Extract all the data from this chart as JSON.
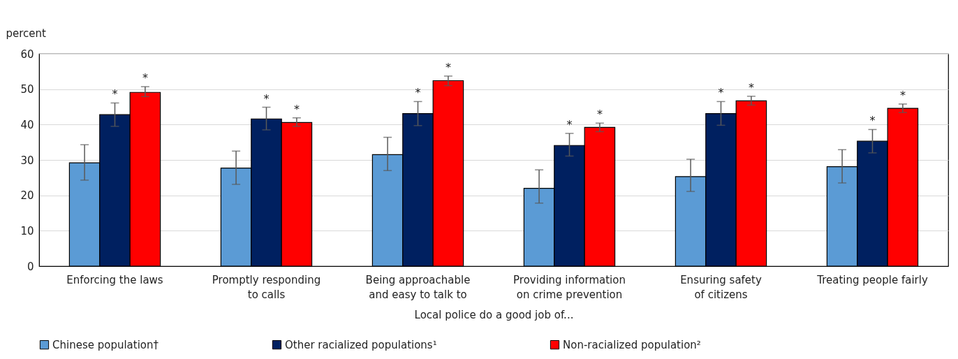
{
  "chart_data": {
    "type": "bar",
    "xlabel": "Local police do a good job of...",
    "ylabel": "percent",
    "categories": [
      "Enforcing the laws",
      "Promptly responding to calls",
      "Being approachable and easy to talk to",
      "Providing information on crime prevention",
      "Ensuring safety of citizens",
      "Treating people fairly"
    ],
    "series": [
      {
        "name": "Chinese population†",
        "color": "#5b9bd5",
        "values": [
          29.2,
          27.7,
          31.5,
          22.0,
          25.3,
          28.1
        ],
        "errors": [
          [
            24.3,
            34.3
          ],
          [
            23.1,
            32.5
          ],
          [
            27.0,
            36.4
          ],
          [
            17.8,
            27.2
          ],
          [
            21.1,
            30.2
          ],
          [
            23.5,
            32.9
          ]
        ]
      },
      {
        "name": "Other racialized populations¹",
        "color": "#002060",
        "values": [
          42.8,
          41.6,
          43.1,
          34.1,
          43.1,
          35.3
        ],
        "errors": [
          [
            39.5,
            46.1
          ],
          [
            38.5,
            44.9
          ],
          [
            39.7,
            46.5
          ],
          [
            31.1,
            37.5
          ],
          [
            39.8,
            46.5
          ],
          [
            32.0,
            38.6
          ]
        ],
        "value_labels": [
          "*",
          "*",
          "*",
          "*",
          "*",
          "*"
        ]
      },
      {
        "name": "Non-racialized population²",
        "color": "#ff0000",
        "values": [
          49.1,
          40.6,
          52.4,
          39.2,
          46.7,
          44.6
        ],
        "errors": [
          [
            47.9,
            50.7
          ],
          [
            39.5,
            41.9
          ],
          [
            51.0,
            53.7
          ],
          [
            38.0,
            40.4
          ],
          [
            45.5,
            48.0
          ],
          [
            43.4,
            45.8
          ]
        ],
        "value_labels": [
          "*",
          "*",
          "*",
          "*",
          "*",
          "*"
        ]
      }
    ],
    "ylim": [
      0,
      60
    ],
    "yticks": [
      0,
      10,
      20,
      30,
      40,
      50,
      60
    ],
    "grid": "y",
    "legend": "bottom"
  }
}
